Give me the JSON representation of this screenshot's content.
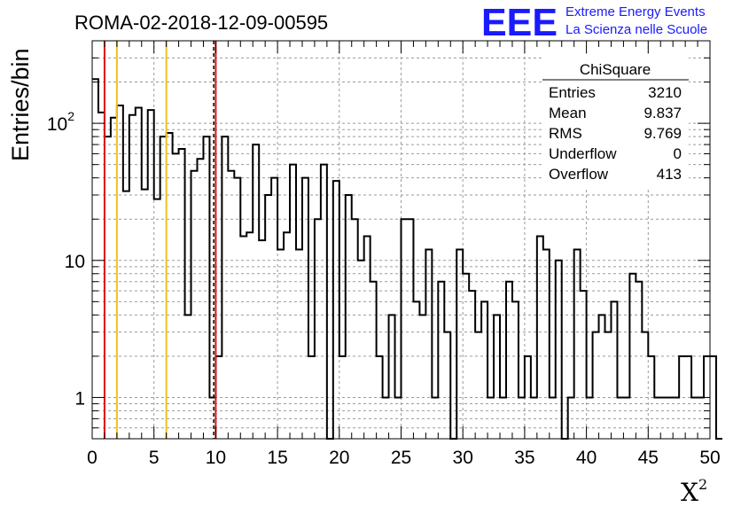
{
  "header": {
    "run_title": "ROMA-02-2018-12-09-00595",
    "logo_mark": "EEE",
    "logo_line1": "Extreme Energy Events",
    "logo_line2": "La Scienza nelle Scuole"
  },
  "colors": {
    "red_line": "#dd1111",
    "yellow_line": "#f0c020",
    "logo_blue": "#1a1aff"
  },
  "chart_data": {
    "type": "bar",
    "xlabel": "X",
    "xlabel_sup": "2",
    "ylabel": "Entries/bin",
    "xlim": [
      0,
      50
    ],
    "ylim": [
      0.5,
      400
    ],
    "yscale": "log",
    "grid": true,
    "bin_width": 0.5,
    "x_ticks": [
      "0",
      "5",
      "10",
      "15",
      "20",
      "25",
      "30",
      "35",
      "40",
      "45",
      "50"
    ],
    "y_ticks": [
      {
        "value": 1,
        "label": "1"
      },
      {
        "value": 10,
        "label": "10"
      },
      {
        "value": 100,
        "label": "10",
        "sup": "2"
      }
    ],
    "values": [
      210,
      120,
      80,
      110,
      135,
      32,
      115,
      130,
      33,
      125,
      28,
      80,
      85,
      60,
      65,
      4,
      45,
      55,
      80,
      1,
      2,
      80,
      45,
      40,
      15,
      16,
      70,
      14,
      30,
      40,
      12,
      16,
      50,
      12,
      40,
      2,
      20,
      50,
      0.5,
      38,
      2,
      30,
      20,
      10,
      15,
      7,
      2,
      1,
      4,
      1,
      20,
      20,
      5,
      4,
      12,
      1,
      7,
      3,
      0.5,
      12,
      8,
      6,
      3,
      5,
      1,
      4,
      1,
      7,
      5,
      1,
      2,
      1,
      15,
      12,
      1,
      10,
      0.5,
      1,
      12,
      6,
      1,
      3,
      4,
      3,
      5,
      1,
      1,
      8,
      7,
      3,
      2,
      1,
      1,
      1,
      1,
      2,
      2,
      1,
      1,
      2,
      2,
      0.5
    ],
    "vertical_lines": [
      {
        "x": 1,
        "color": "red",
        "style": "solid"
      },
      {
        "x": 2,
        "color": "yellow",
        "style": "solid"
      },
      {
        "x": 6,
        "color": "yellow",
        "style": "solid"
      },
      {
        "x": 9.837,
        "color": "black",
        "style": "dashed"
      },
      {
        "x": 10,
        "color": "red",
        "style": "solid"
      }
    ],
    "stats": {
      "title": "ChiSquare",
      "rows": [
        {
          "label": "Entries",
          "value": "3210"
        },
        {
          "label": "Mean",
          "value": "9.837"
        },
        {
          "label": "RMS",
          "value": "9.769"
        },
        {
          "label": "Underflow",
          "value": "0"
        },
        {
          "label": "Overflow",
          "value": "413"
        }
      ]
    }
  }
}
